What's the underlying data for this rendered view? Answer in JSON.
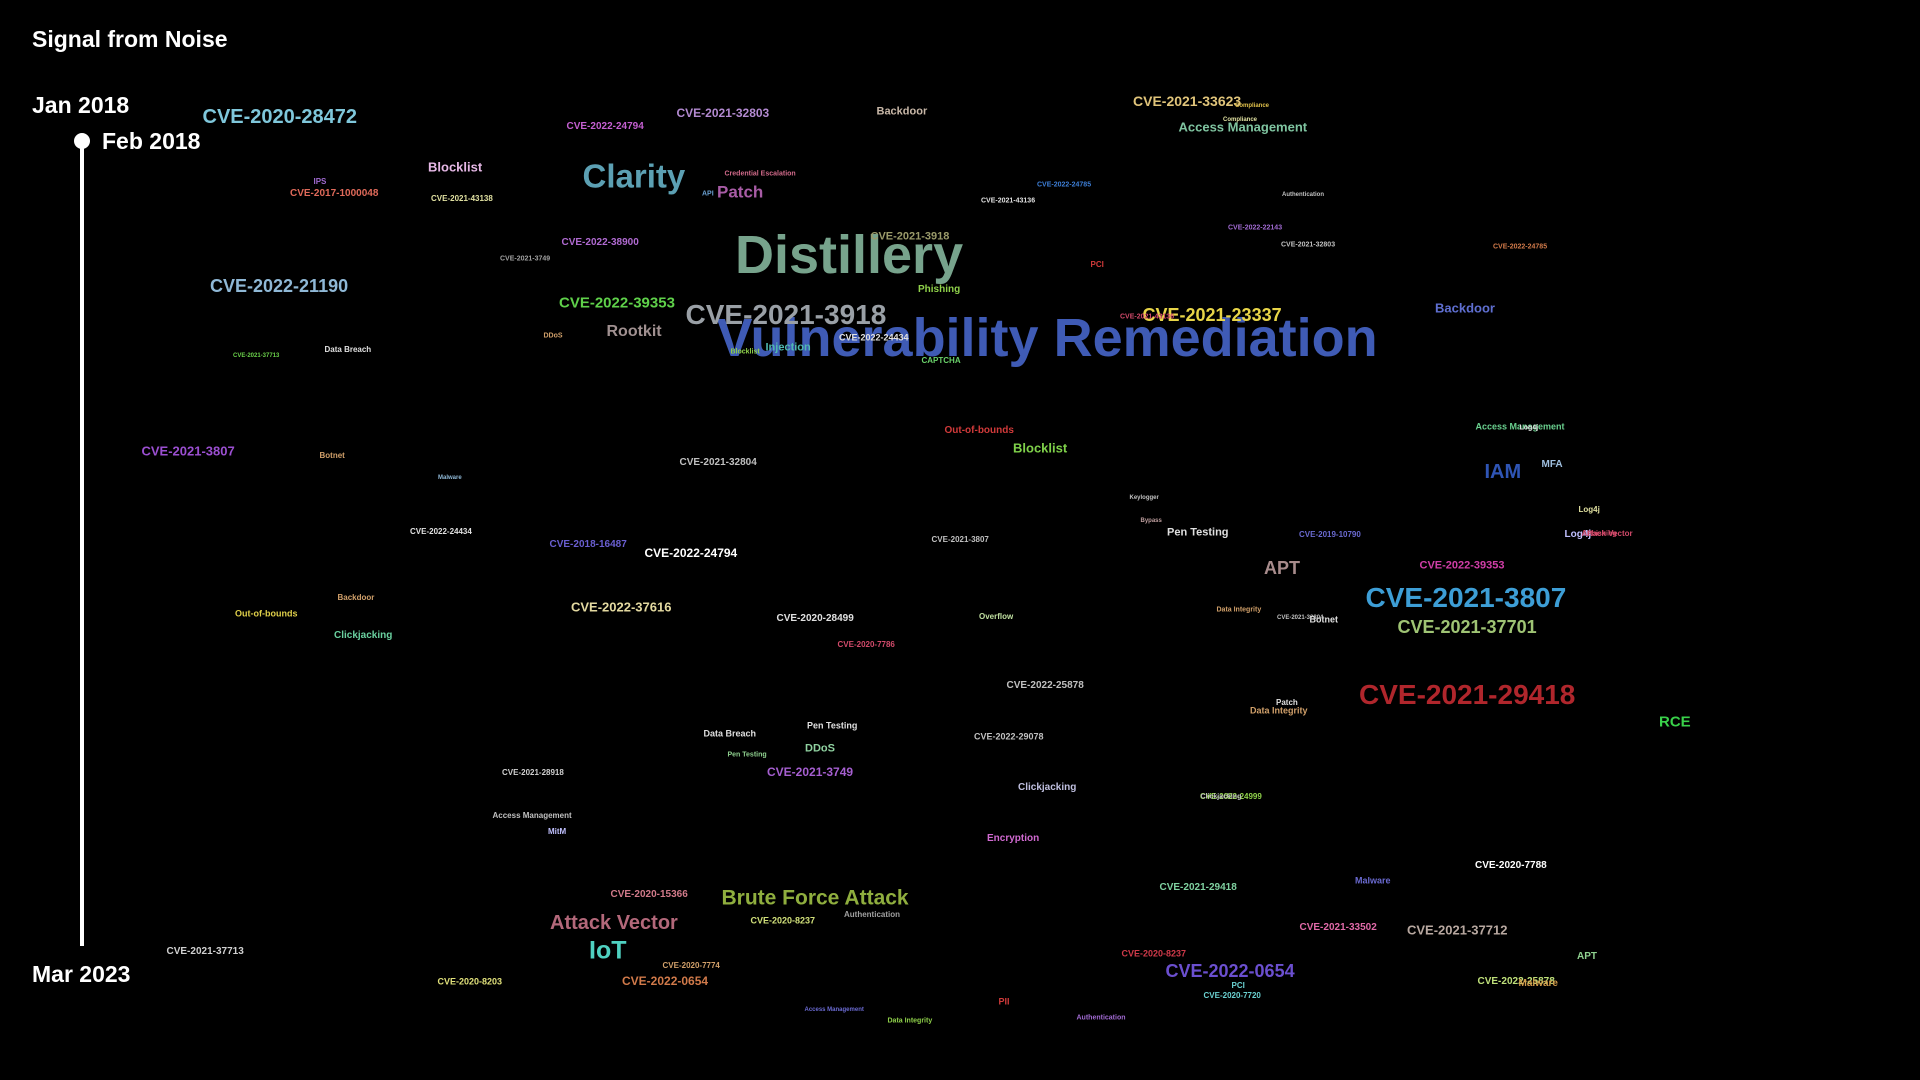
{
  "header": {
    "title": "Signal from Noise"
  },
  "timeline": {
    "start_label": "Jan 2018",
    "current_label": "Feb 2018",
    "end_label": "Mar 2023",
    "progress": 0.0
  },
  "words": [
    {
      "text": "Vulnerability Remediation",
      "color": "#3f5bb5"
    },
    {
      "text": "Distillery",
      "color": "#77a38c"
    },
    {
      "text": "CVE-2021-3918",
      "color": "#9aa0a6"
    },
    {
      "text": "Clarity",
      "color": "#5ca0b3"
    },
    {
      "text": "CVE-2021-29418",
      "color": "#b0262c"
    },
    {
      "text": "CVE-2021-3807",
      "color": "#3d9ed6"
    },
    {
      "text": "CVE-2020-28472",
      "color": "#7fc7db"
    },
    {
      "text": "CVE-2022-21190",
      "color": "#8fb8d6"
    },
    {
      "text": "CVE-2021-37701",
      "color": "#9fc474"
    },
    {
      "text": "CVE-2022-0654",
      "color": "#6b4fcf"
    },
    {
      "text": "Brute Force Attack",
      "color": "#8fae3e"
    },
    {
      "text": "Attack Vector",
      "color": "#b3687a"
    },
    {
      "text": "IoT",
      "color": "#4fd1c1"
    },
    {
      "text": "CVE-2021-23337",
      "color": "#e8d548"
    },
    {
      "text": "IAM",
      "color": "#2f55b5"
    },
    {
      "text": "APT",
      "color": "#a88c8c"
    },
    {
      "text": "Patch",
      "color": "#a85ca6"
    },
    {
      "text": "CVE-2021-33623",
      "color": "#e0c47a"
    },
    {
      "text": "Access Management",
      "color": "#7fc4a0"
    },
    {
      "text": "CVE-2022-39353",
      "color": "#5fd14a"
    },
    {
      "text": "Rootkit",
      "color": "#a09090"
    },
    {
      "text": "CVE-2022-24794",
      "color": "#ffffff"
    },
    {
      "text": "CVE-2022-37616",
      "color": "#e3d9a0"
    },
    {
      "text": "Blocklist",
      "color": "#e6b8e6"
    },
    {
      "text": "Blocklist",
      "color": "#7fd14a"
    },
    {
      "text": "CVE-2021-3807",
      "color": "#9b4fd1"
    },
    {
      "text": "CVE-2021-32803",
      "color": "#b38ad1"
    },
    {
      "text": "Backdoor",
      "color": "#c9b8a8"
    },
    {
      "text": "Backdoor",
      "color": "#5f6fd1"
    },
    {
      "text": "CVE-2022-39353",
      "color": "#d13ea8"
    },
    {
      "text": "RCE",
      "color": "#39d14a"
    },
    {
      "text": "CVE-2021-3749",
      "color": "#a65fd1"
    },
    {
      "text": "CVE-2021-37712",
      "color": "#b8a8a0"
    },
    {
      "text": "CVE-2022-0654",
      "color": "#d17a4a"
    },
    {
      "text": "CVE-2022-24794",
      "color": "#c45fd1"
    },
    {
      "text": "CVE-2017-1000048",
      "color": "#e06a5a"
    },
    {
      "text": "CVE-2022-38900",
      "color": "#b06ad1"
    },
    {
      "text": "CVE-2020-15366",
      "color": "#d17a8a"
    },
    {
      "text": "Pen Testing",
      "color": "#e0e0e0"
    },
    {
      "text": "Out-of-bounds",
      "color": "#d13a3a"
    },
    {
      "text": "Injection",
      "color": "#4fb8b0"
    },
    {
      "text": "CVE-2021-3918",
      "color": "#9a9a6a"
    },
    {
      "text": "CVE-2022-25878",
      "color": "#c0c0c0"
    },
    {
      "text": "CVE-2021-29418",
      "color": "#7fd1a0"
    },
    {
      "text": "CVE-2021-33502",
      "color": "#e06aa8"
    },
    {
      "text": "CVE-2020-7788",
      "color": "#ffffff"
    },
    {
      "text": "CVE-2022-25878",
      "color": "#bfe07a"
    },
    {
      "text": "CVE-2020-8237",
      "color": "#d13a4a"
    },
    {
      "text": "CVE-2020-8237",
      "color": "#d1e07a"
    },
    {
      "text": "CVE-2020-8203",
      "color": "#e0e07a"
    },
    {
      "text": "CVE-2021-37713",
      "color": "#d0d0d0"
    },
    {
      "text": "CVE-2021-37713",
      "color": "#d0d0d0"
    },
    {
      "text": "CVE-2018-16487",
      "color": "#6a5fd1"
    },
    {
      "text": "CVE-2020-28499",
      "color": "#e0e0e0"
    },
    {
      "text": "CVE-2021-32804",
      "color": "#c0c0c0"
    },
    {
      "text": "CVE-2022-24434",
      "color": "#e0e0e0"
    },
    {
      "text": "CVE-2022-24434",
      "color": "#e0e0e0"
    },
    {
      "text": "Phishing",
      "color": "#8fd14a"
    },
    {
      "text": "Encryption",
      "color": "#d16ad1"
    },
    {
      "text": "Clickjacking",
      "color": "#c0c0e0"
    },
    {
      "text": "Clickjacking",
      "color": "#6ad1a0"
    },
    {
      "text": "DDoS",
      "color": "#8fd1a0"
    },
    {
      "text": "Log4j",
      "color": "#c0c0ff"
    },
    {
      "text": "MFA",
      "color": "#a0c0e0"
    },
    {
      "text": "Attack Vector",
      "color": "#d14a6a"
    },
    {
      "text": "Malware",
      "color": "#d19a4a"
    },
    {
      "text": "Malware",
      "color": "#6a6ad1"
    },
    {
      "text": "APT",
      "color": "#8fd18f"
    },
    {
      "text": "PII",
      "color": "#d13a3a"
    },
    {
      "text": "PCI",
      "color": "#6ad1d1"
    },
    {
      "text": "CVE-2020-7720",
      "color": "#6ad1d1"
    },
    {
      "text": "Botnet",
      "color": "#d1a06a"
    },
    {
      "text": "Data Breach",
      "color": "#e0e0e0"
    },
    {
      "text": "MitM",
      "color": "#c0c0ff"
    },
    {
      "text": "Authentication",
      "color": "#a0a0a0"
    },
    {
      "text": "Compliance",
      "color": "#e0e0a0"
    },
    {
      "text": "CVE-2020-7774",
      "color": "#d1a06a"
    },
    {
      "text": "CVE-2021-43138",
      "color": "#e0e0a0"
    },
    {
      "text": "Credential Escalation",
      "color": "#d16a8a"
    },
    {
      "text": "IPS",
      "color": "#a06ad1"
    },
    {
      "text": "API",
      "color": "#6aa0d1"
    },
    {
      "text": "CAPTCHA",
      "color": "#6ad16a"
    },
    {
      "text": "PCI",
      "color": "#d13a3a"
    },
    {
      "text": "Overflow",
      "color": "#c0e0a0"
    },
    {
      "text": "Out-of-bounds",
      "color": "#e0d04a"
    },
    {
      "text": "Backdoor",
      "color": "#d1a06a"
    },
    {
      "text": "CVE-2020-7786",
      "color": "#d14a6a"
    },
    {
      "text": "Patch",
      "color": "#e0e0e0"
    },
    {
      "text": "Access Management",
      "color": "#6ad18f"
    },
    {
      "text": "Log4j",
      "color": "#e0e0a0"
    },
    {
      "text": "Bypass",
      "color": "#c0a0a0"
    },
    {
      "text": "Keylogger",
      "color": "#c0c0c0"
    },
    {
      "text": "CVE-2019-10790",
      "color": "#6a6ad1"
    },
    {
      "text": "Botnet",
      "color": "#e0e0e0"
    },
    {
      "text": "CVE-2022-24999",
      "color": "#8fd14a"
    },
    {
      "text": "CVE-2021-28918",
      "color": "#d0d0d0"
    },
    {
      "text": "Malware",
      "color": "#8fb8d6"
    },
    {
      "text": "Data Breach",
      "color": "#e0e0e0"
    },
    {
      "text": "Data Integrity",
      "color": "#d1a06a"
    },
    {
      "text": "Access Management",
      "color": "#c0c0c0"
    },
    {
      "text": "CVE-2022-29078",
      "color": "#c0c0c0"
    },
    {
      "text": "Pen Testing",
      "color": "#e0e0e0"
    },
    {
      "text": "Pen Testing",
      "color": "#8fd18f"
    },
    {
      "text": "DDoS",
      "color": "#d1a06a"
    },
    {
      "text": "CVE-2021-3749",
      "color": "#a0a0a0"
    },
    {
      "text": "CVE-2022-22143",
      "color": "#a06ad1"
    },
    {
      "text": "CVE-2022-24785",
      "color": "#d17a4a"
    },
    {
      "text": "CVE-2022-24785",
      "color": "#3d7ed6"
    },
    {
      "text": "CVE-2021-32803",
      "color": "#c0c0c0"
    },
    {
      "text": "CVE-2021-43136",
      "color": "#d14a6a"
    },
    {
      "text": "Authentication",
      "color": "#c0c0c0"
    },
    {
      "text": "CVE-2021-43136",
      "color": "#e0e0e0"
    },
    {
      "text": "Compliance",
      "color": "#e0c04a"
    },
    {
      "text": "Blocklist",
      "color": "#8fd14a"
    },
    {
      "text": "CVE-2021-37713",
      "color": "#6ad14a"
    },
    {
      "text": "Log4j",
      "color": "#e0e0e0"
    },
    {
      "text": "Access Management",
      "color": "#6a6ad1"
    },
    {
      "text": "Data Integrity",
      "color": "#8fd14a"
    },
    {
      "text": "Clickjacking",
      "color": "#c0c0c0"
    },
    {
      "text": "Authentication",
      "color": "#a06ad1"
    },
    {
      "text": "Phishing",
      "color": "#d14a6a"
    },
    {
      "text": "Attack Vector",
      "color": "#d14a6a"
    },
    {
      "text": "CVE-2021-32804",
      "color": "#c0c0c0"
    },
    {
      "text": "Data Integrity",
      "color": "#d1a06a"
    },
    {
      "text": "CVE-2021-28918",
      "color": "#d14a6a"
    },
    {
      "text": "CVE-2020-7774",
      "color": "#c0c0c0"
    },
    {
      "text": "CVE-2021-3807",
      "color": "#c0c0c0"
    }
  ]
}
